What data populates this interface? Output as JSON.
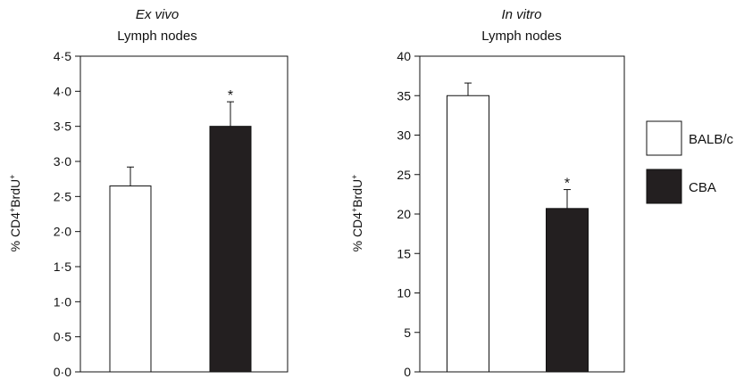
{
  "chart_data": [
    {
      "type": "bar",
      "title_italic": "Ex vivo",
      "title": "Lymph nodes",
      "ylabel_prefix": "% CD4",
      "ylabel_mid": "BrdU",
      "xlabel": "",
      "ylim": [
        0,
        4.5
      ],
      "yticks": [
        "0·0",
        "0·5",
        "1·0",
        "1·5",
        "2·0",
        "2·5",
        "3·0",
        "3·5",
        "4·0",
        "4·5"
      ],
      "yticks_values": [
        0,
        0.5,
        1.0,
        1.5,
        2.0,
        2.5,
        3.0,
        3.5,
        4.0,
        4.5
      ],
      "categories": [
        "BALB/c",
        "CBA"
      ],
      "values": [
        2.65,
        3.5
      ],
      "errors": [
        0.27,
        0.35
      ],
      "significance": [
        "",
        "*"
      ]
    },
    {
      "type": "bar",
      "title_italic": "In vitro",
      "title": "Lymph nodes",
      "ylabel_prefix": "% CD4",
      "ylabel_mid": "BrdU",
      "xlabel": "",
      "ylim": [
        0,
        40
      ],
      "yticks": [
        "0",
        "5",
        "10",
        "15",
        "20",
        "25",
        "30",
        "35",
        "40"
      ],
      "yticks_values": [
        0,
        5,
        10,
        15,
        20,
        25,
        30,
        35,
        40
      ],
      "categories": [
        "BALB/c",
        "CBA"
      ],
      "values": [
        35.0,
        20.7
      ],
      "errors": [
        1.6,
        2.4
      ],
      "significance": [
        "",
        "*"
      ]
    }
  ],
  "legend": {
    "entries": [
      {
        "label": "BALB/c",
        "color": "#ffffff"
      },
      {
        "label": "CBA",
        "color": "#231f20"
      }
    ]
  },
  "colors": {
    "balbc": "#ffffff",
    "cba": "#231f20",
    "stroke": "#111111"
  }
}
